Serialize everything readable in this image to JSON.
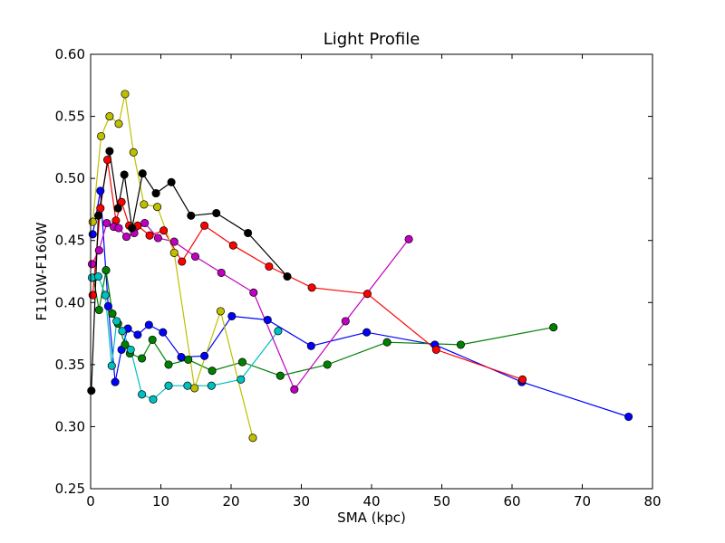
{
  "chart_data": {
    "type": "line",
    "title": "Light Profile",
    "xlabel": "SMA (kpc)",
    "ylabel": "F110W-F160W",
    "xlim": [
      0,
      80
    ],
    "ylim": [
      0.25,
      0.6
    ],
    "xticks": [
      0,
      10,
      20,
      30,
      40,
      50,
      60,
      70,
      80
    ],
    "yticks": [
      0.25,
      0.3,
      0.35,
      0.4,
      0.45,
      0.5,
      0.55,
      0.6
    ],
    "xtick_labels": [
      "0",
      "10",
      "20",
      "30",
      "40",
      "50",
      "60",
      "70",
      "80"
    ],
    "ytick_labels": [
      "0.25",
      "0.30",
      "0.35",
      "0.40",
      "0.45",
      "0.50",
      "0.55",
      "0.60"
    ],
    "grid": false,
    "legend": "none",
    "series": [
      {
        "color": "#0000ff",
        "x": [
          0.3,
          1.4,
          2.5,
          3.5,
          4.4,
          5.3,
          6.7,
          8.3,
          10.3,
          12.9,
          16.2,
          20.1,
          25.2,
          31.4,
          39.3,
          49.0,
          61.4,
          76.6
        ],
        "y": [
          0.455,
          0.49,
          0.397,
          0.336,
          0.362,
          0.379,
          0.374,
          0.382,
          0.376,
          0.356,
          0.357,
          0.389,
          0.386,
          0.365,
          0.376,
          0.366,
          0.336,
          0.308
        ]
      },
      {
        "color": "#008000",
        "x": [
          0.4,
          1.2,
          2.2,
          3.1,
          3.9,
          4.9,
          5.6,
          7.3,
          8.8,
          11.1,
          13.9,
          17.3,
          21.6,
          27.0,
          33.7,
          42.2,
          52.7,
          65.9
        ],
        "y": [
          0.42,
          0.394,
          0.426,
          0.391,
          0.383,
          0.366,
          0.359,
          0.355,
          0.37,
          0.35,
          0.354,
          0.345,
          0.352,
          0.341,
          0.35,
          0.368,
          0.366,
          0.38
        ]
      },
      {
        "color": "#ff0000",
        "x": [
          0.3,
          1.4,
          2.4,
          3.6,
          4.4,
          5.5,
          6.7,
          8.4,
          10.4,
          13.0,
          16.2,
          20.3,
          25.4,
          31.5,
          39.4,
          49.2,
          61.5
        ],
        "y": [
          0.406,
          0.476,
          0.515,
          0.466,
          0.481,
          0.462,
          0.462,
          0.454,
          0.458,
          0.433,
          0.462,
          0.446,
          0.429,
          0.412,
          0.407,
          0.362,
          0.338
        ]
      },
      {
        "color": "#00bfbf",
        "x": [
          0.2,
          1.1,
          2.1,
          3.0,
          3.7,
          4.5,
          5.7,
          7.3,
          8.9,
          11.1,
          13.8,
          17.2,
          21.4,
          26.7
        ],
        "y": [
          0.42,
          0.421,
          0.406,
          0.349,
          0.385,
          0.377,
          0.362,
          0.326,
          0.322,
          0.333,
          0.333,
          0.333,
          0.338,
          0.377
        ]
      },
      {
        "color": "#bf00bf",
        "x": [
          0.2,
          1.2,
          2.3,
          3.3,
          4.0,
          5.1,
          6.2,
          7.7,
          9.6,
          11.9,
          14.9,
          18.6,
          23.2,
          29.0,
          36.3,
          45.3
        ],
        "y": [
          0.431,
          0.442,
          0.464,
          0.461,
          0.46,
          0.453,
          0.456,
          0.464,
          0.452,
          0.449,
          0.437,
          0.424,
          0.408,
          0.33,
          0.385,
          0.451
        ]
      },
      {
        "color": "#bfbf00",
        "x": [
          0.3,
          1.5,
          2.7,
          4.0,
          4.9,
          6.1,
          7.6,
          9.5,
          11.9,
          14.8,
          18.5,
          23.1
        ],
        "y": [
          0.465,
          0.534,
          0.55,
          0.544,
          0.568,
          0.521,
          0.479,
          0.477,
          0.44,
          0.331,
          0.393,
          0.291
        ]
      },
      {
        "color": "#000000",
        "x": [
          0.1,
          1.1,
          2.7,
          3.9,
          4.8,
          5.9,
          7.4,
          9.3,
          11.5,
          14.3,
          17.9,
          22.4,
          28.0
        ],
        "y": [
          0.329,
          0.47,
          0.522,
          0.476,
          0.503,
          0.46,
          0.504,
          0.488,
          0.497,
          0.47,
          0.472,
          0.456,
          0.421
        ]
      }
    ]
  }
}
